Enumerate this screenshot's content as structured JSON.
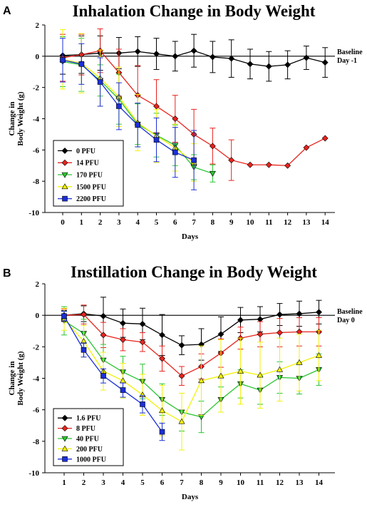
{
  "chart_data": [
    {
      "type": "line",
      "panel_label": "A",
      "title": "Inhalation Change in Body Weight",
      "xlabel": "Days",
      "ylabel": [
        "Change in",
        "Body Weight (g)"
      ],
      "ylim": [
        -10,
        2
      ],
      "xlim": [
        0,
        14
      ],
      "xticks": [
        0,
        1,
        2,
        3,
        4,
        5,
        6,
        7,
        8,
        9,
        10,
        11,
        12,
        13,
        14
      ],
      "yticks": [
        2,
        0,
        -2,
        -4,
        -6,
        -8,
        -10
      ],
      "baseline_label": [
        "Baseline",
        "Day -1"
      ],
      "legend": "bottom-left",
      "series": [
        {
          "name": "0 PFU",
          "color": "#000000",
          "marker": "diamond",
          "x": [
            0,
            1,
            2,
            3,
            4,
            5,
            6,
            7,
            8,
            9,
            10,
            11,
            12,
            13,
            14
          ],
          "y": [
            0.05,
            0.1,
            0.2,
            0.2,
            0.3,
            0.15,
            0.0,
            0.35,
            -0.05,
            -0.15,
            -0.5,
            -0.65,
            -0.55,
            -0.1,
            -0.4
          ],
          "err": [
            1.2,
            1.2,
            1.1,
            1.0,
            0.95,
            1.0,
            0.95,
            1.05,
            1.0,
            1.2,
            0.95,
            0.95,
            0.9,
            0.75,
            0.95
          ]
        },
        {
          "name": "14 PFU",
          "color": "#e8231c",
          "marker": "diamond",
          "x": [
            0,
            1,
            2,
            3,
            4,
            5,
            6,
            7,
            8,
            9,
            10,
            11,
            12,
            13,
            14
          ],
          "y": [
            -0.1,
            0.1,
            0.35,
            -1.05,
            -2.5,
            -3.2,
            -4.0,
            -5.0,
            -5.75,
            -6.65,
            -6.95,
            -6.95,
            -7.0,
            -5.85,
            -5.25
          ],
          "err": [
            1.5,
            1.3,
            1.4,
            1.5,
            1.9,
            1.7,
            1.5,
            1.6,
            1.15,
            1.3,
            0,
            0,
            0,
            0,
            0
          ]
        },
        {
          "name": "170 PFU",
          "color": "#2bc531",
          "marker": "tri-down",
          "x": [
            0,
            1,
            2,
            3,
            4,
            5,
            6,
            7,
            8
          ],
          "y": [
            -0.35,
            -0.55,
            -1.55,
            -2.75,
            -4.35,
            -5.05,
            -5.7,
            -7.1,
            -7.5
          ],
          "err": [
            1.6,
            1.7,
            1.0,
            1.6,
            1.3,
            1.4,
            1.3,
            0.8,
            0.55
          ]
        },
        {
          "name": "1500 PFU",
          "color": "#f2f20a",
          "marker": "tri-up",
          "x": [
            0,
            1,
            2,
            3,
            4,
            5,
            6,
            7
          ],
          "y": [
            -0.2,
            -0.45,
            -1.4,
            -2.6,
            -4.25,
            -5.1,
            -5.85,
            -6.8
          ],
          "err": [
            1.9,
            1.9,
            1.8,
            1.9,
            1.8,
            1.7,
            1.5,
            1.2
          ]
        },
        {
          "name": "2200 PFU",
          "color": "#1b2fd8",
          "marker": "square",
          "x": [
            0,
            1,
            2,
            3,
            4,
            5,
            6,
            7
          ],
          "y": [
            -0.25,
            -0.5,
            -1.65,
            -3.2,
            -4.4,
            -5.35,
            -6.15,
            -6.65
          ],
          "err": [
            1.4,
            1.3,
            1.55,
            1.5,
            1.4,
            1.4,
            1.6,
            1.9
          ]
        }
      ]
    },
    {
      "type": "line",
      "panel_label": "B",
      "title": "Instillation Change in Body Weight",
      "xlabel": "Days",
      "ylabel": [
        "Change in",
        "Body Weight (g)"
      ],
      "ylim": [
        -10,
        2
      ],
      "xlim": [
        1,
        14
      ],
      "xticks": [
        1,
        2,
        3,
        4,
        5,
        6,
        7,
        8,
        9,
        10,
        11,
        12,
        13,
        14
      ],
      "yticks": [
        2,
        0,
        -2,
        -4,
        -6,
        -8,
        -10
      ],
      "baseline_label": [
        "Baseline",
        "Day 0"
      ],
      "legend": "bottom-left",
      "series": [
        {
          "name": "1.6 PFU",
          "color": "#000000",
          "marker": "diamond",
          "x": [
            1,
            2,
            3,
            4,
            5,
            6,
            7,
            8,
            9,
            10,
            11,
            12,
            13,
            14
          ],
          "y": [
            0.0,
            0.1,
            -0.05,
            -0.5,
            -0.55,
            -1.25,
            -1.9,
            -1.85,
            -1.2,
            -0.3,
            -0.25,
            0.05,
            0.1,
            0.2
          ],
          "err": [
            0.3,
            0.5,
            1.2,
            0.9,
            1.0,
            1.3,
            0.6,
            1.0,
            1.1,
            0.8,
            0.8,
            0.7,
            0.8,
            0.75
          ]
        },
        {
          "name": "8 PFU",
          "color": "#e8231c",
          "marker": "diamond",
          "x": [
            1,
            2,
            3,
            4,
            5,
            6,
            7,
            8,
            9,
            10,
            11,
            12,
            13,
            14
          ],
          "y": [
            0.0,
            0.05,
            -1.25,
            -1.55,
            -1.7,
            -2.75,
            -3.85,
            -3.25,
            -2.4,
            -1.45,
            -1.2,
            -1.1,
            -1.05,
            -1.05
          ],
          "err": [
            0.4,
            0.6,
            0.8,
            0.7,
            0.6,
            0.8,
            0.6,
            0.8,
            0.9,
            0.7,
            0.8,
            0.9,
            0.9,
            0.9
          ]
        },
        {
          "name": "40 PFU",
          "color": "#2bc531",
          "marker": "tri-down",
          "x": [
            1,
            2,
            3,
            4,
            5,
            6,
            7,
            8,
            9,
            10,
            11,
            12,
            13,
            14
          ],
          "y": [
            -0.35,
            -1.15,
            -2.85,
            -3.6,
            -4.2,
            -5.35,
            -6.15,
            -6.45,
            -5.35,
            -4.35,
            -4.75,
            -3.95,
            -4.0,
            -3.45
          ],
          "err": [
            0.9,
            0.9,
            1.0,
            1.0,
            1.1,
            1.0,
            1.2,
            1.0,
            0.8,
            0.9,
            0.9,
            1.0,
            1.0,
            1.0
          ]
        },
        {
          "name": "200 PFU",
          "color": "#f2f20a",
          "marker": "tri-up",
          "x": [
            1,
            2,
            3,
            4,
            5,
            6,
            7,
            8,
            9,
            10,
            11,
            12,
            13,
            14
          ],
          "y": [
            -0.25,
            -1.65,
            -3.55,
            -4.15,
            -5.05,
            -6.05,
            -6.75,
            -4.15,
            -3.85,
            -3.55,
            -3.8,
            -3.45,
            -3.0,
            -2.55
          ],
          "err": [
            0.7,
            1.0,
            1.2,
            1.1,
            1.3,
            1.6,
            1.8,
            2.2,
            2.3,
            2.1,
            2.1,
            2.0,
            1.8,
            1.6
          ]
        },
        {
          "name": "1000 PFU",
          "color": "#1b2fd8",
          "marker": "square",
          "x": [
            1,
            2,
            3,
            4,
            5,
            6
          ],
          "y": [
            -0.05,
            -2.2,
            -3.85,
            -4.75,
            -5.65,
            -7.4
          ],
          "err": [
            0.3,
            0.45,
            0.45,
            0.45,
            0.55,
            0.55
          ]
        }
      ]
    }
  ]
}
